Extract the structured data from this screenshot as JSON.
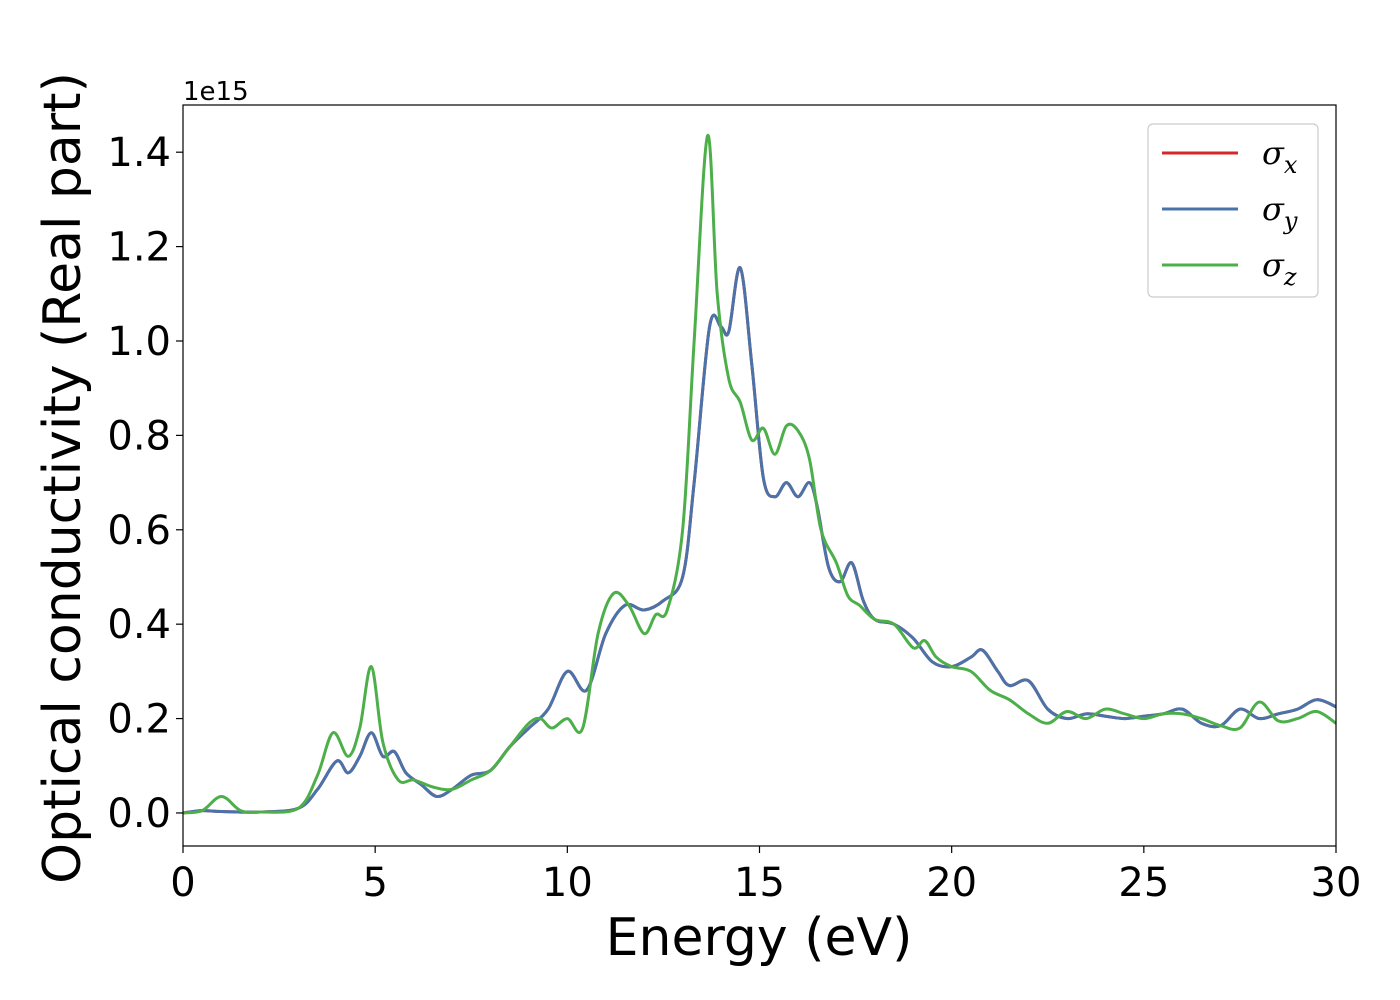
{
  "chart_data": {
    "type": "line",
    "xlabel": "Energy (eV)",
    "ylabel": "Optical conductivity (Real part)",
    "y_offset_label": "1e15",
    "xlim": [
      0,
      30
    ],
    "ylim": [
      -0.07,
      1.5
    ],
    "x_ticks": [
      0,
      5,
      10,
      15,
      20,
      25,
      30
    ],
    "x_tick_labels": [
      "0",
      "5",
      "10",
      "15",
      "20",
      "25",
      "30"
    ],
    "y_ticks": [
      0.0,
      0.2,
      0.4,
      0.6,
      0.8,
      1.0,
      1.2,
      1.4
    ],
    "y_tick_labels": [
      "0.0",
      "0.2",
      "0.4",
      "0.6",
      "0.8",
      "1.0",
      "1.2",
      "1.4"
    ],
    "grid": false,
    "legend_position": "top-right",
    "series": [
      {
        "name": "σx",
        "legend_symbol": "σ",
        "legend_subscript": "x",
        "color": "#d62728",
        "x": [
          0,
          0.5,
          1,
          2,
          3,
          3.5,
          4,
          4.3,
          4.6,
          4.9,
          5.2,
          5.5,
          5.8,
          6.2,
          6.6,
          7,
          7.5,
          8,
          8.5,
          9,
          9.5,
          10,
          10.5,
          11,
          11.5,
          12,
          12.5,
          13,
          13.3,
          13.7,
          14,
          14.2,
          14.5,
          14.8,
          15.1,
          15.4,
          15.7,
          16,
          16.3,
          16.5,
          16.8,
          17.1,
          17.4,
          17.7,
          18,
          18.5,
          19,
          19.5,
          20,
          20.5,
          20.8,
          21.2,
          21.5,
          22,
          22.5,
          23,
          23.5,
          24,
          24.5,
          25,
          25.5,
          26,
          26.5,
          27,
          27.5,
          28,
          28.5,
          29,
          29.5,
          30
        ],
        "values": [
          0.0,
          0.005,
          0.003,
          0.002,
          0.01,
          0.05,
          0.11,
          0.085,
          0.12,
          0.17,
          0.12,
          0.13,
          0.085,
          0.06,
          0.035,
          0.05,
          0.08,
          0.09,
          0.14,
          0.18,
          0.22,
          0.3,
          0.26,
          0.38,
          0.44,
          0.43,
          0.45,
          0.5,
          0.7,
          1.03,
          1.03,
          1.02,
          1.155,
          0.95,
          0.71,
          0.67,
          0.7,
          0.67,
          0.7,
          0.65,
          0.52,
          0.49,
          0.53,
          0.45,
          0.41,
          0.4,
          0.37,
          0.32,
          0.31,
          0.33,
          0.345,
          0.3,
          0.27,
          0.28,
          0.22,
          0.2,
          0.21,
          0.205,
          0.2,
          0.205,
          0.21,
          0.22,
          0.19,
          0.185,
          0.22,
          0.2,
          0.21,
          0.22,
          0.24,
          0.225
        ]
      },
      {
        "name": "σy",
        "legend_symbol": "σ",
        "legend_subscript": "y",
        "color": "#4a73aa",
        "x": [
          0,
          0.5,
          1,
          2,
          3,
          3.5,
          4,
          4.3,
          4.6,
          4.9,
          5.2,
          5.5,
          5.8,
          6.2,
          6.6,
          7,
          7.5,
          8,
          8.5,
          9,
          9.5,
          10,
          10.5,
          11,
          11.5,
          12,
          12.5,
          13,
          13.3,
          13.7,
          14,
          14.2,
          14.5,
          14.8,
          15.1,
          15.4,
          15.7,
          16,
          16.3,
          16.5,
          16.8,
          17.1,
          17.4,
          17.7,
          18,
          18.5,
          19,
          19.5,
          20,
          20.5,
          20.8,
          21.2,
          21.5,
          22,
          22.5,
          23,
          23.5,
          24,
          24.5,
          25,
          25.5,
          26,
          26.5,
          27,
          27.5,
          28,
          28.5,
          29,
          29.5,
          30
        ],
        "values": [
          0.0,
          0.005,
          0.003,
          0.002,
          0.01,
          0.05,
          0.11,
          0.085,
          0.12,
          0.17,
          0.12,
          0.13,
          0.085,
          0.06,
          0.035,
          0.05,
          0.08,
          0.09,
          0.14,
          0.18,
          0.22,
          0.3,
          0.26,
          0.38,
          0.44,
          0.43,
          0.45,
          0.5,
          0.7,
          1.03,
          1.03,
          1.02,
          1.155,
          0.95,
          0.71,
          0.67,
          0.7,
          0.67,
          0.7,
          0.65,
          0.52,
          0.49,
          0.53,
          0.45,
          0.41,
          0.4,
          0.37,
          0.32,
          0.31,
          0.33,
          0.345,
          0.3,
          0.27,
          0.28,
          0.22,
          0.2,
          0.21,
          0.205,
          0.2,
          0.205,
          0.21,
          0.22,
          0.19,
          0.185,
          0.22,
          0.2,
          0.21,
          0.22,
          0.24,
          0.225
        ]
      },
      {
        "name": "σz",
        "legend_symbol": "σ",
        "legend_subscript": "z",
        "color": "#4daf4a",
        "x": [
          0,
          0.5,
          1,
          1.5,
          2,
          3,
          3.5,
          3.9,
          4.3,
          4.6,
          4.9,
          5.2,
          5.6,
          6,
          6.5,
          7,
          7.5,
          8,
          8.5,
          9,
          9.3,
          9.6,
          10,
          10.4,
          10.8,
          11.2,
          11.6,
          12,
          12.3,
          12.6,
          13,
          13.3,
          13.65,
          13.9,
          14.2,
          14.5,
          14.8,
          15.1,
          15.4,
          15.7,
          16,
          16.3,
          16.6,
          17,
          17.3,
          17.6,
          18,
          18.5,
          19,
          19.3,
          19.6,
          20,
          20.5,
          21,
          21.5,
          22,
          22.5,
          23,
          23.5,
          24,
          24.5,
          25,
          25.5,
          26,
          26.5,
          27,
          27.5,
          28,
          28.5,
          29,
          29.5,
          30
        ],
        "values": [
          0.0,
          0.005,
          0.035,
          0.005,
          0.002,
          0.01,
          0.08,
          0.17,
          0.12,
          0.18,
          0.31,
          0.15,
          0.07,
          0.07,
          0.055,
          0.05,
          0.07,
          0.09,
          0.14,
          0.19,
          0.2,
          0.18,
          0.2,
          0.18,
          0.38,
          0.465,
          0.44,
          0.38,
          0.42,
          0.43,
          0.6,
          1.0,
          1.435,
          1.1,
          0.92,
          0.87,
          0.79,
          0.815,
          0.76,
          0.82,
          0.81,
          0.75,
          0.6,
          0.53,
          0.46,
          0.44,
          0.41,
          0.4,
          0.35,
          0.365,
          0.33,
          0.31,
          0.3,
          0.26,
          0.24,
          0.21,
          0.19,
          0.215,
          0.2,
          0.22,
          0.21,
          0.2,
          0.21,
          0.21,
          0.2,
          0.185,
          0.18,
          0.235,
          0.195,
          0.2,
          0.215,
          0.19
        ]
      }
    ]
  }
}
